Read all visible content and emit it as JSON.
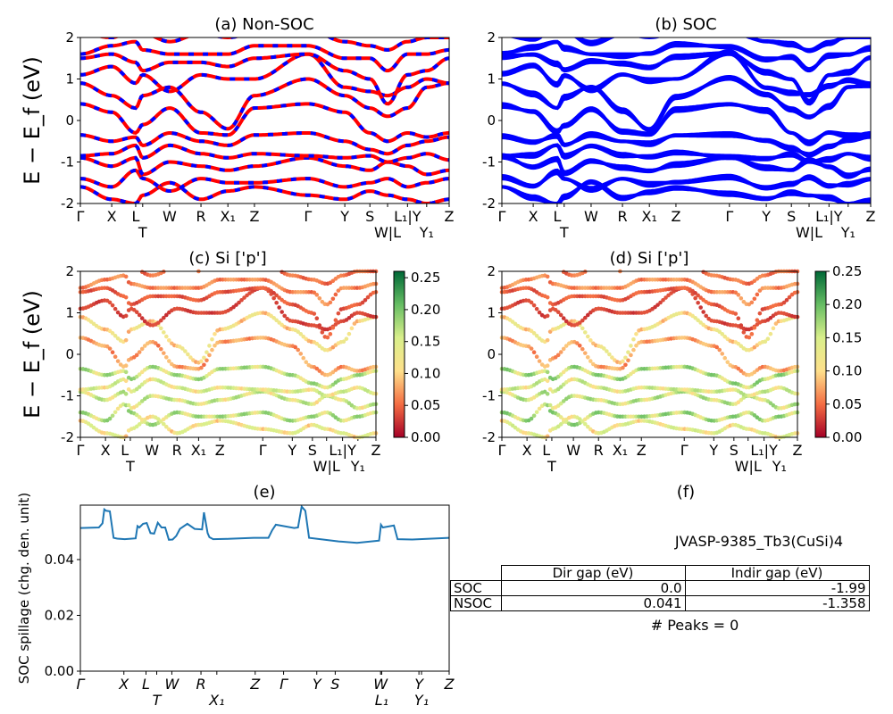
{
  "panels": {
    "a": {
      "title": "(a) Non-SOC",
      "ylabel": "E − E_f (eV)"
    },
    "b": {
      "title": "(b) SOC"
    },
    "c": {
      "title": "(c)  Si ['p']",
      "ylabel": "E − E_f (eV)",
      "colorbar_ticks": [
        "0.00",
        "0.05",
        "0.10",
        "0.15",
        "0.20",
        "0.25"
      ],
      "colorbar_range": [
        0,
        0.26
      ]
    },
    "d": {
      "title": "(d) Si ['p']",
      "colorbar_ticks": [
        "0.00",
        "0.05",
        "0.10",
        "0.15",
        "0.20",
        "0.25"
      ],
      "colorbar_range": [
        0,
        0.25
      ]
    },
    "e": {
      "title": "(e)",
      "ylabel": "SOC spillage (chg. den. unit)"
    },
    "f": {
      "title": "(f)",
      "material": "JVASP-9385_Tb3(CuSi)4",
      "peaks": "# Peaks = 0"
    }
  },
  "table": {
    "headers": [
      "",
      "Dir gap (eV)",
      "Indir gap (eV)"
    ],
    "rows": [
      [
        "SOC",
        "0.0",
        "-1.99"
      ],
      [
        "NSOC",
        "0.041",
        "-1.358"
      ]
    ]
  },
  "chart_data": {
    "type": "line",
    "colors": {
      "nonsoc": "#ff0000",
      "nonsoc_dash": "#0000ff",
      "soc": "#0000ff",
      "spillage": "#1f77b4",
      "colormap": "RdYlGn"
    },
    "kpath": {
      "positions": [
        0,
        0.085,
        0.15,
        0.169,
        0.242,
        0.327,
        0.4,
        0.472,
        0.617,
        0.717,
        0.785,
        0.833,
        0.887,
        0.939,
        1
      ],
      "labels": [
        "Γ",
        "X",
        "L",
        "T",
        "W",
        "R",
        "X₁",
        "Z",
        "Γ",
        "Y",
        "S",
        "W|L",
        "L₁|Y",
        "Y₁",
        "Z"
      ]
    },
    "ylim": [
      -2,
      2
    ],
    "yticks": [
      "-2",
      "-1",
      "0",
      "1",
      "2"
    ],
    "bands": [
      {
        "energies": [
          -1.6,
          -1.9,
          -2,
          -1.8,
          -1.5,
          -1.9,
          -1.7,
          -1.6,
          -1.8,
          -1.9,
          -1.7,
          -1.8,
          -1.9,
          -2,
          -1.9
        ],
        "si_p": 0.12
      },
      {
        "energies": [
          -1.4,
          -1.6,
          -1.2,
          -1.4,
          -1.7,
          -1.4,
          -1.5,
          -1.5,
          -1.4,
          -1.6,
          -1.5,
          -1.4,
          -1.6,
          -1.5,
          -1.4
        ],
        "si_p": 0.15
      },
      {
        "energies": [
          -0.9,
          -1.1,
          -0.9,
          -1.3,
          -1.0,
          -1.1,
          -1.2,
          -1.1,
          -0.9,
          -1.1,
          -1.2,
          -1.0,
          -1.1,
          -1.3,
          -1.2
        ],
        "si_p": 0.14
      },
      {
        "energies": [
          -0.85,
          -0.8,
          -0.6,
          -0.9,
          -0.6,
          -0.8,
          -0.9,
          -0.8,
          -0.85,
          -0.9,
          -0.85,
          -1.0,
          -0.9,
          -0.8,
          -0.95
        ],
        "si_p": 0.13
      },
      {
        "energies": [
          -0.35,
          -0.5,
          -0.4,
          -0.6,
          -0.3,
          -0.5,
          -0.6,
          -0.35,
          -0.3,
          -0.5,
          -0.7,
          -0.8,
          -0.6,
          -0.5,
          -0.4
        ],
        "si_p": 0.15
      },
      {
        "energies": [
          0.4,
          0.2,
          -0.3,
          -0.1,
          0.3,
          -0.3,
          -0.35,
          0.3,
          0.4,
          0.2,
          -0.3,
          -0.5,
          -0.3,
          -0.4,
          -0.3
        ],
        "si_p": 0.07
      },
      {
        "energies": [
          0.9,
          0.6,
          0.3,
          0.6,
          0.8,
          0.2,
          -0.2,
          0.6,
          1.0,
          0.6,
          0.3,
          0.1,
          0.3,
          0.8,
          0.9
        ],
        "si_p": 0.1
      },
      {
        "energies": [
          1.1,
          1.3,
          0.9,
          1.1,
          0.7,
          1.1,
          1.0,
          1.0,
          1.6,
          0.8,
          0.7,
          0.6,
          0.8,
          1.0,
          0.9
        ],
        "si_p": 0.03
      },
      {
        "energies": [
          1.5,
          1.6,
          1.4,
          1.2,
          1.4,
          1.4,
          1.3,
          1.5,
          1.6,
          1.2,
          1.0,
          0.4,
          1.1,
          1.2,
          1.5
        ],
        "si_p": 0.04
      },
      {
        "energies": [
          1.6,
          1.8,
          1.9,
          1.7,
          1.6,
          1.6,
          1.6,
          1.8,
          1.8,
          1.5,
          1.5,
          1.2,
          1.6,
          1.6,
          1.7
        ],
        "si_p": 0.06
      },
      {
        "energies": [
          2.1,
          2.0,
          2.2,
          2.1,
          1.9,
          2.1,
          2.0,
          2.1,
          2.2,
          1.9,
          1.8,
          1.7,
          1.9,
          2.0,
          2.0
        ],
        "si_p": 0.05
      }
    ],
    "spillage": {
      "ylim": [
        0,
        0.0595
      ],
      "yticks": [
        "0.00",
        "0.02",
        "0.04"
      ],
      "kpath_labels": [
        "Γ",
        "X",
        "L",
        "T",
        "W",
        "R",
        "X₁",
        "Z",
        "Γ",
        "Y",
        "S",
        "W",
        "L₁",
        "Y",
        "Y₁",
        "Z"
      ],
      "kpath_positions": [
        0,
        0.118,
        0.178,
        0.207,
        0.248,
        0.327,
        0.37,
        0.474,
        0.551,
        0.641,
        0.691,
        0.814,
        0.817,
        0.918,
        0.925,
        1
      ],
      "x": [
        0,
        0.05,
        0.06,
        0.065,
        0.07,
        0.08,
        0.09,
        0.1,
        0.12,
        0.15,
        0.155,
        0.16,
        0.17,
        0.18,
        0.19,
        0.2,
        0.21,
        0.22,
        0.23,
        0.24,
        0.25,
        0.26,
        0.27,
        0.29,
        0.31,
        0.33,
        0.335,
        0.345,
        0.35,
        0.36,
        0.4,
        0.47,
        0.51,
        0.52,
        0.53,
        0.58,
        0.59,
        0.6,
        0.61,
        0.62,
        0.7,
        0.75,
        0.81,
        0.815,
        0.82,
        0.85,
        0.86,
        0.9,
        1
      ],
      "y": [
        0.0513,
        0.0515,
        0.053,
        0.058,
        0.0575,
        0.0573,
        0.0478,
        0.0475,
        0.0473,
        0.0476,
        0.052,
        0.0515,
        0.0528,
        0.0531,
        0.0495,
        0.0493,
        0.0532,
        0.0515,
        0.0515,
        0.0471,
        0.0472,
        0.0485,
        0.051,
        0.0528,
        0.051,
        0.0508,
        0.0569,
        0.0495,
        0.048,
        0.0473,
        0.0474,
        0.0478,
        0.0478,
        0.0505,
        0.0525,
        0.0513,
        0.0515,
        0.059,
        0.0575,
        0.0478,
        0.0465,
        0.046,
        0.0468,
        0.0525,
        0.0515,
        0.0522,
        0.0473,
        0.0472,
        0.0478
      ]
    }
  }
}
